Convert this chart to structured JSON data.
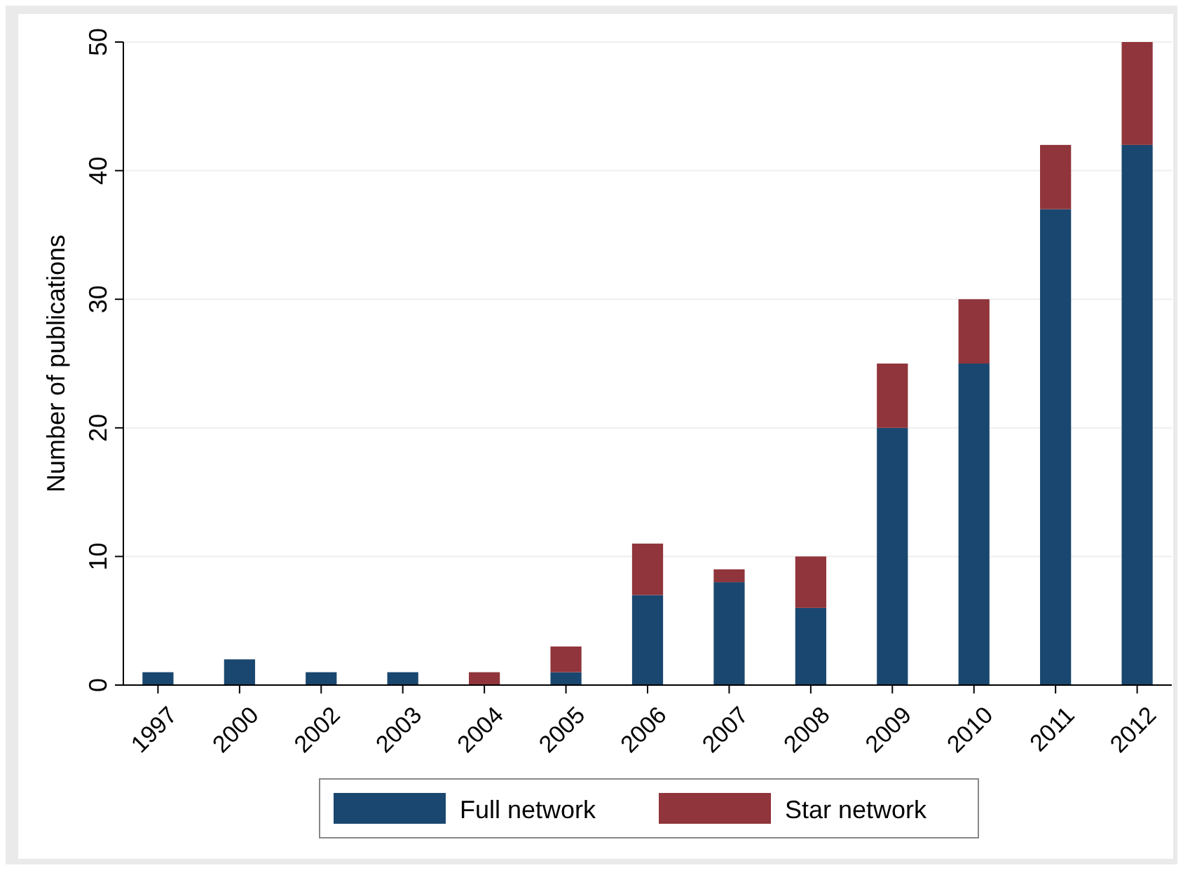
{
  "chart_data": {
    "type": "bar",
    "stacked": true,
    "ylabel": "Number of publications",
    "categories": [
      "1997",
      "2000",
      "2002",
      "2003",
      "2004",
      "2005",
      "2006",
      "2007",
      "2008",
      "2009",
      "2010",
      "2011",
      "2012"
    ],
    "series": [
      {
        "name": "Full network",
        "color": "#1a476f",
        "values": [
          1,
          2,
          1,
          1,
          0,
          1,
          7,
          8,
          6,
          20,
          25,
          37,
          42
        ]
      },
      {
        "name": "Star network",
        "color": "#90353b",
        "values": [
          0,
          0,
          0,
          0,
          1,
          2,
          4,
          1,
          4,
          5,
          5,
          5,
          8
        ]
      }
    ],
    "ylim": [
      0,
      50
    ],
    "yticks": [
      0,
      10,
      20,
      30,
      40,
      50
    ],
    "grid": "y",
    "legend": "bottom"
  }
}
